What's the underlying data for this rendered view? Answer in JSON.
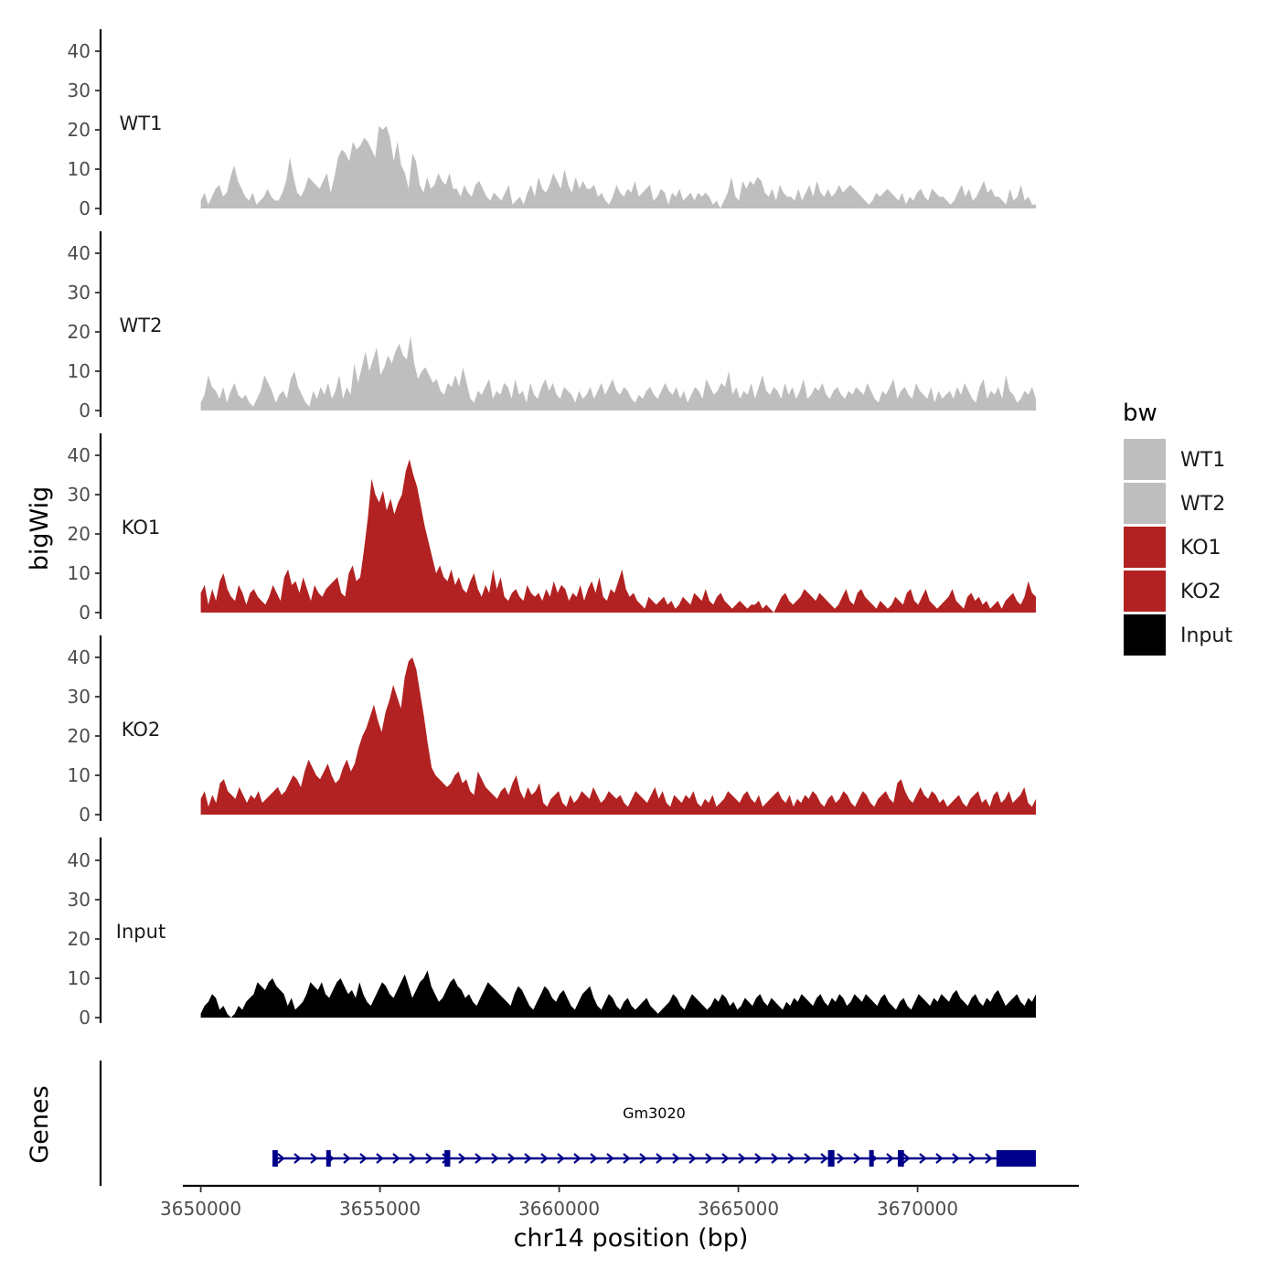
{
  "chart_data": {
    "type": "area",
    "ylabel": "bigWig",
    "xlabel": "chr14 position (bp)",
    "x_range": [
      3650000,
      3673300
    ],
    "x_limits": [
      3649500,
      3674500
    ],
    "x_ticks": [
      3650000,
      3655000,
      3660000,
      3665000,
      3670000
    ],
    "x_tick_labels": [
      "3650000",
      "3655000",
      "3660000",
      "3665000",
      "3670000"
    ],
    "ylim": [
      0,
      45
    ],
    "y_ticks": [
      0,
      10,
      20,
      30,
      40
    ],
    "y_tick_labels": [
      "0",
      "10",
      "20",
      "30",
      "40"
    ],
    "legend": {
      "title": "bw",
      "position": "right",
      "entries": [
        {
          "label": "WT1",
          "color": "#bebebe"
        },
        {
          "label": "WT2",
          "color": "#bebebe"
        },
        {
          "label": "KO1",
          "color": "#b22222"
        },
        {
          "label": "KO2",
          "color": "#b22222"
        },
        {
          "label": "Input",
          "color": "#000000"
        }
      ]
    },
    "series": [
      {
        "name": "WT1",
        "color": "#bebebe",
        "values": [
          2,
          4,
          1,
          3,
          5,
          6,
          3,
          4,
          8,
          11,
          7,
          5,
          3,
          2,
          4,
          1,
          2,
          3,
          5,
          3,
          2,
          2,
          4,
          7,
          13,
          8,
          4,
          3,
          5,
          8,
          7,
          6,
          5,
          7,
          9,
          4,
          8,
          13,
          15,
          14,
          12,
          17,
          15,
          16,
          18,
          17,
          15,
          13,
          21,
          20,
          21,
          18,
          12,
          17,
          11,
          9,
          5,
          14,
          12,
          6,
          4,
          8,
          5,
          6,
          9,
          7,
          6,
          9,
          5,
          5,
          3,
          6,
          4,
          3,
          6,
          7,
          5,
          3,
          2,
          4,
          3,
          2,
          4,
          6,
          1,
          2,
          3,
          1,
          4,
          6,
          3,
          8,
          5,
          4,
          6,
          9,
          7,
          5,
          10,
          6,
          4,
          8,
          5,
          7,
          5,
          5,
          6,
          3,
          4,
          2,
          1,
          3,
          6,
          4,
          3,
          5,
          4,
          7,
          3,
          4,
          5,
          6,
          2,
          3,
          5,
          4,
          1,
          4,
          3,
          5,
          2,
          3,
          4,
          2,
          4,
          3,
          4,
          3,
          1,
          2,
          0,
          2,
          4,
          8,
          3,
          2,
          7,
          5,
          7,
          6,
          8,
          7,
          4,
          3,
          5,
          2,
          6,
          4,
          3,
          3,
          2,
          5,
          2,
          4,
          6,
          3,
          7,
          4,
          3,
          5,
          3,
          4,
          6,
          4,
          5,
          6,
          5,
          4,
          3,
          2,
          1,
          2,
          4,
          3,
          4,
          5,
          4,
          3,
          2,
          4,
          1,
          3,
          2,
          4,
          5,
          3,
          2,
          5,
          4,
          3,
          3,
          2,
          1,
          2,
          4,
          6,
          3,
          5,
          2,
          3,
          5,
          7,
          4,
          5,
          3,
          3,
          2,
          1,
          5,
          2,
          3,
          6,
          2,
          3,
          1,
          1
        ],
        "_": ""
      },
      {
        "name": "WT2",
        "color": "#bebebe",
        "values": [
          2,
          4,
          9,
          6,
          5,
          3,
          6,
          2,
          5,
          7,
          4,
          3,
          4,
          2,
          1,
          3,
          5,
          9,
          7,
          5,
          2,
          4,
          5,
          3,
          8,
          10,
          6,
          4,
          2,
          1,
          5,
          3,
          6,
          4,
          7,
          3,
          5,
          9,
          3,
          6,
          4,
          12,
          7,
          11,
          15,
          10,
          13,
          16,
          9,
          11,
          14,
          12,
          15,
          17,
          14,
          13,
          19,
          12,
          8,
          10,
          11,
          9,
          7,
          8,
          5,
          4,
          7,
          6,
          9,
          6,
          11,
          7,
          3,
          2,
          5,
          4,
          6,
          8,
          3,
          5,
          4,
          7,
          6,
          3,
          8,
          4,
          5,
          2,
          7,
          4,
          3,
          6,
          8,
          5,
          7,
          4,
          3,
          6,
          5,
          4,
          2,
          5,
          3,
          4,
          6,
          3,
          5,
          7,
          4,
          6,
          8,
          5,
          4,
          6,
          5,
          3,
          2,
          4,
          3,
          5,
          6,
          4,
          3,
          5,
          7,
          5,
          4,
          6,
          3,
          5,
          2,
          4,
          6,
          5,
          3,
          8,
          6,
          4,
          5,
          7,
          6,
          10,
          4,
          6,
          3,
          5,
          4,
          7,
          3,
          6,
          9,
          5,
          4,
          6,
          5,
          3,
          7,
          4,
          6,
          3,
          5,
          8,
          3,
          4,
          6,
          5,
          7,
          4,
          3,
          5,
          6,
          4,
          3,
          5,
          4,
          6,
          5,
          4,
          7,
          5,
          3,
          2,
          5,
          4,
          6,
          8,
          3,
          5,
          6,
          4,
          3,
          7,
          5,
          4,
          3,
          6,
          2,
          5,
          3,
          4,
          5,
          3,
          6,
          4,
          7,
          5,
          3,
          2,
          6,
          8,
          3,
          5,
          4,
          6,
          3,
          9,
          5,
          4,
          2,
          3,
          5,
          4,
          6,
          3
        ],
        "_": ""
      },
      {
        "name": "KO1",
        "color": "#b22222",
        "values": [
          5,
          7,
          2,
          6,
          3,
          8,
          10,
          6,
          4,
          3,
          7,
          5,
          2,
          5,
          6,
          4,
          3,
          2,
          4,
          7,
          5,
          3,
          9,
          11,
          7,
          8,
          5,
          9,
          6,
          3,
          7,
          5,
          4,
          6,
          7,
          8,
          9,
          5,
          4,
          10,
          12,
          8,
          9,
          16,
          24,
          34,
          30,
          28,
          31,
          26,
          29,
          25,
          28,
          30,
          36,
          39,
          35,
          32,
          27,
          22,
          18,
          14,
          10,
          12,
          9,
          8,
          11,
          7,
          9,
          6,
          5,
          8,
          10,
          6,
          4,
          7,
          5,
          11,
          6,
          9,
          4,
          3,
          5,
          6,
          4,
          3,
          7,
          5,
          4,
          5,
          3,
          6,
          4,
          8,
          5,
          7,
          6,
          3,
          5,
          4,
          7,
          3,
          6,
          8,
          5,
          9,
          4,
          3,
          6,
          5,
          8,
          11,
          6,
          4,
          5,
          3,
          2,
          1,
          4,
          3,
          2,
          3,
          4,
          2,
          3,
          1,
          2,
          4,
          3,
          2,
          5,
          4,
          3,
          6,
          3,
          2,
          4,
          5,
          3,
          2,
          1,
          2,
          3,
          2,
          1,
          2,
          2,
          3,
          1,
          2,
          1,
          0,
          2,
          4,
          5,
          3,
          2,
          3,
          4,
          6,
          5,
          4,
          3,
          5,
          4,
          3,
          2,
          1,
          2,
          4,
          6,
          3,
          2,
          5,
          6,
          4,
          3,
          2,
          1,
          3,
          2,
          1,
          2,
          4,
          3,
          2,
          5,
          6,
          3,
          2,
          4,
          6,
          3,
          2,
          1,
          2,
          3,
          4,
          6,
          3,
          2,
          1,
          4,
          5,
          3,
          4,
          2,
          3,
          1,
          2,
          3,
          1,
          3,
          4,
          5,
          3,
          2,
          4,
          8,
          5,
          4
        ],
        "_": ""
      },
      {
        "name": "KO2",
        "color": "#b22222",
        "values": [
          4,
          6,
          2,
          5,
          3,
          8,
          9,
          6,
          5,
          4,
          7,
          5,
          3,
          5,
          4,
          6,
          3,
          4,
          5,
          6,
          7,
          5,
          6,
          8,
          10,
          9,
          7,
          11,
          14,
          12,
          10,
          9,
          11,
          13,
          10,
          8,
          9,
          12,
          14,
          11,
          13,
          17,
          20,
          22,
          25,
          28,
          24,
          21,
          26,
          29,
          33,
          30,
          27,
          35,
          39,
          40,
          37,
          31,
          25,
          18,
          12,
          10,
          9,
          8,
          7,
          8,
          10,
          11,
          8,
          9,
          6,
          5,
          11,
          9,
          7,
          6,
          5,
          4,
          6,
          7,
          5,
          8,
          10,
          6,
          4,
          7,
          5,
          6,
          8,
          3,
          2,
          4,
          5,
          6,
          3,
          2,
          5,
          3,
          4,
          6,
          5,
          4,
          7,
          5,
          3,
          4,
          6,
          5,
          4,
          5,
          3,
          2,
          4,
          6,
          5,
          4,
          3,
          5,
          7,
          4,
          6,
          3,
          2,
          5,
          4,
          3,
          5,
          4,
          6,
          3,
          2,
          4,
          3,
          5,
          2,
          3,
          4,
          6,
          5,
          4,
          3,
          5,
          6,
          4,
          3,
          5,
          2,
          3,
          4,
          5,
          6,
          4,
          3,
          5,
          2,
          4,
          3,
          5,
          4,
          6,
          5,
          3,
          2,
          4,
          5,
          3,
          4,
          6,
          5,
          3,
          2,
          4,
          6,
          5,
          3,
          2,
          4,
          5,
          6,
          4,
          3,
          8,
          9,
          6,
          4,
          3,
          5,
          7,
          5,
          4,
          6,
          5,
          3,
          4,
          2,
          3,
          4,
          5,
          3,
          2,
          4,
          5,
          6,
          3,
          4,
          2,
          5,
          6,
          3,
          4,
          6,
          3,
          4,
          5,
          7,
          3,
          2,
          4
        ],
        "_": ""
      },
      {
        "name": "Input",
        "color": "#000000",
        "values": [
          1,
          3,
          4,
          6,
          5,
          2,
          3,
          1,
          0,
          1,
          3,
          2,
          4,
          5,
          6,
          9,
          8,
          7,
          9,
          10,
          8,
          7,
          6,
          3,
          5,
          2,
          3,
          4,
          6,
          9,
          8,
          7,
          9,
          6,
          5,
          7,
          9,
          10,
          8,
          6,
          7,
          5,
          9,
          6,
          4,
          3,
          5,
          7,
          9,
          8,
          6,
          5,
          7,
          9,
          11,
          8,
          5,
          7,
          9,
          10,
          12,
          8,
          6,
          4,
          5,
          7,
          9,
          10,
          8,
          7,
          5,
          6,
          4,
          3,
          5,
          7,
          9,
          8,
          7,
          6,
          5,
          4,
          3,
          6,
          8,
          7,
          5,
          3,
          2,
          4,
          6,
          8,
          7,
          5,
          4,
          6,
          7,
          5,
          3,
          2,
          4,
          6,
          7,
          8,
          5,
          3,
          2,
          4,
          6,
          5,
          3,
          2,
          4,
          5,
          3,
          2,
          3,
          4,
          5,
          3,
          2,
          1,
          2,
          3,
          4,
          6,
          5,
          3,
          2,
          4,
          6,
          5,
          4,
          3,
          2,
          3,
          5,
          4,
          6,
          5,
          3,
          4,
          2,
          3,
          5,
          4,
          3,
          5,
          6,
          4,
          3,
          5,
          4,
          3,
          2,
          4,
          3,
          5,
          4,
          6,
          5,
          4,
          3,
          5,
          6,
          4,
          3,
          5,
          4,
          6,
          5,
          3,
          4,
          6,
          5,
          4,
          6,
          5,
          4,
          3,
          5,
          6,
          4,
          3,
          2,
          4,
          5,
          3,
          2,
          4,
          6,
          5,
          4,
          3,
          5,
          4,
          6,
          5,
          4,
          6,
          7,
          5,
          4,
          3,
          5,
          6,
          4,
          3,
          5,
          4,
          6,
          7,
          5,
          3,
          4,
          5,
          6,
          4,
          3,
          5,
          4,
          6
        ],
        "_": ""
      }
    ],
    "genes": {
      "title": "Genes",
      "name": "Gm3020",
      "color": "#00008b",
      "strand": "+",
      "start": 3652000,
      "end": 3673300,
      "exons": [
        {
          "start": 3652000,
          "end": 3652150
        },
        {
          "start": 3653500,
          "end": 3653620
        },
        {
          "start": 3656800,
          "end": 3656960
        },
        {
          "start": 3667500,
          "end": 3667680
        },
        {
          "start": 3668650,
          "end": 3668760
        },
        {
          "start": 3669450,
          "end": 3669620
        },
        {
          "start": 3672200,
          "end": 3673300
        }
      ]
    }
  }
}
